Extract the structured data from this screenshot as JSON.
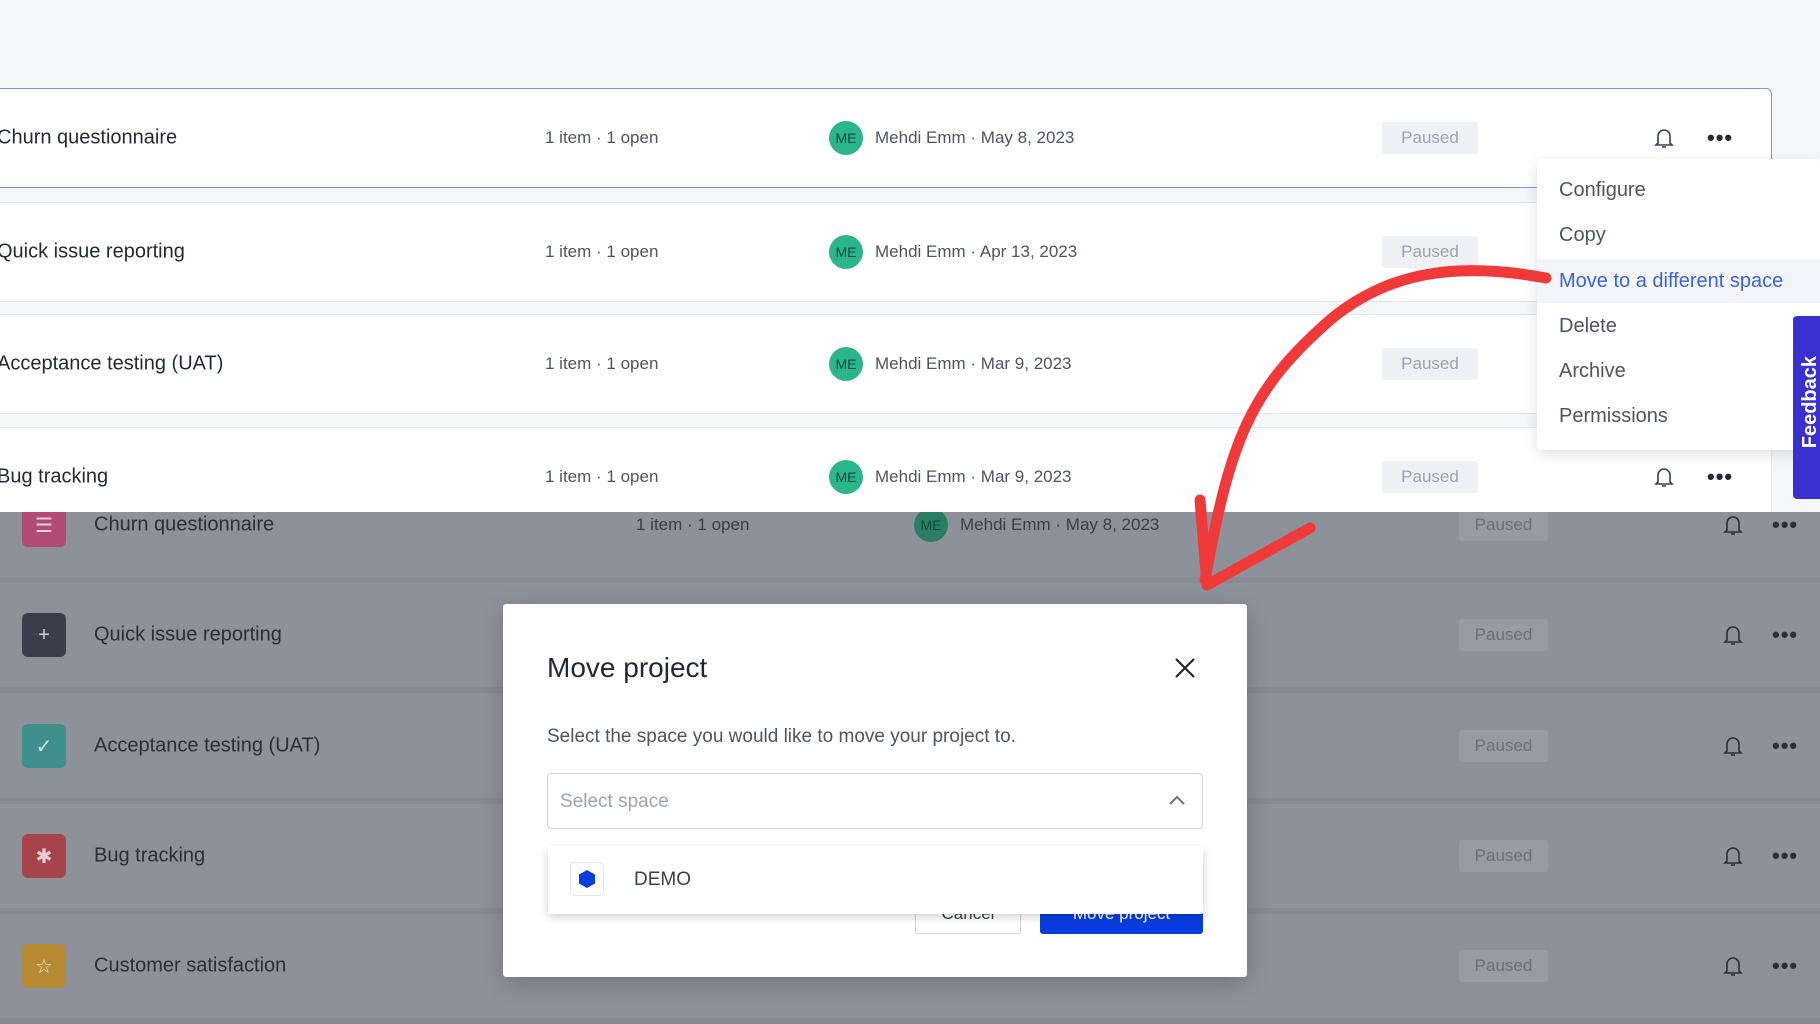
{
  "top_rows": [
    {
      "title": "Churn questionnaire",
      "items": "1 item · 1 open",
      "avatar": "ME",
      "meta": "Mehdi Emm · May 8, 2023",
      "status": "Paused"
    },
    {
      "title": "Quick issue reporting",
      "items": "1 item · 1 open",
      "avatar": "ME",
      "meta": "Mehdi Emm · Apr 13, 2023",
      "status": "Paused"
    },
    {
      "title": "Acceptance testing (UAT)",
      "items": "1 item · 1 open",
      "avatar": "ME",
      "meta": "Mehdi Emm · Mar 9, 2023",
      "status": "Paused"
    },
    {
      "title": "Bug tracking",
      "items": "1 item · 1 open",
      "avatar": "ME",
      "meta": "Mehdi Emm · Mar 9, 2023",
      "status": "Paused"
    }
  ],
  "context_menu": {
    "items": [
      "Configure",
      "Copy",
      "Move to a different space",
      "Delete",
      "Archive",
      "Permissions"
    ],
    "active": "Move to a different space"
  },
  "feedback_label": "Feedback",
  "bottom_rows": [
    {
      "title": "Churn questionnaire",
      "items": "1 item · 1 open",
      "avatar": "ME",
      "meta": "Mehdi Emm · May 8, 2023",
      "status": "Paused",
      "icon": "list-icon",
      "color": "#b04a77"
    },
    {
      "title": "Quick issue reporting",
      "status": "Paused",
      "icon": "capture-plus-icon",
      "color": "#3a3f4b"
    },
    {
      "title": "Acceptance testing (UAT)",
      "status": "Paused",
      "icon": "badge-check-icon",
      "color": "#3f8f8c"
    },
    {
      "title": "Bug tracking",
      "status": "Paused",
      "icon": "bug-icon",
      "color": "#a8454c"
    },
    {
      "title": "Customer satisfaction",
      "status": "Paused",
      "icon": "star-icon",
      "color": "#b58a32"
    }
  ],
  "modal": {
    "title": "Move project",
    "subtitle": "Select the space you would like to move your project to.",
    "select_placeholder": "Select space",
    "options": [
      {
        "label": "DEMO",
        "icon": "hexagon-icon",
        "color": "#0a3de0"
      }
    ],
    "cancel_label": "Cancel",
    "submit_label": "Move project"
  },
  "colors": {
    "accent": "#3b63d9",
    "primary_button": "#0a3de0",
    "feedback": "#3a2fd0",
    "annotation_arrow": "#f03a3a"
  }
}
